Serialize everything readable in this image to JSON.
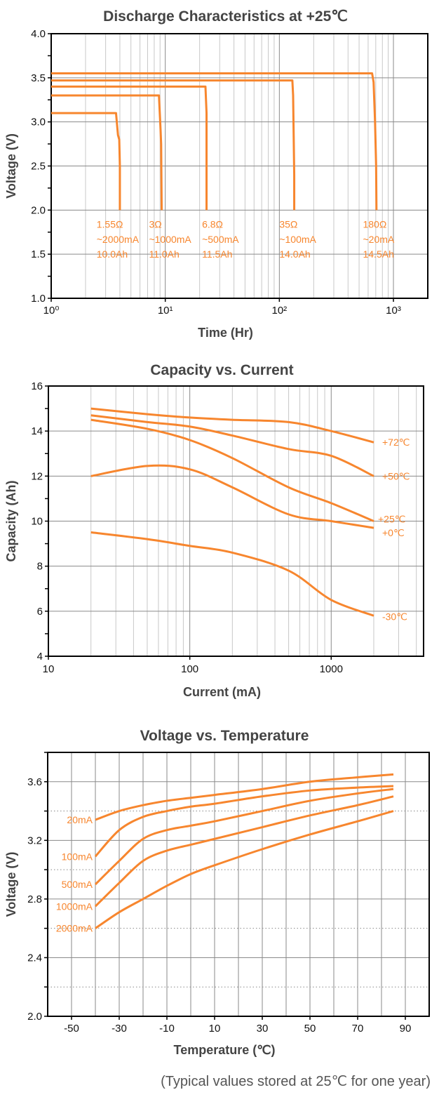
{
  "accent_color": "#f7862e",
  "footnote": "(Typical values stored at 25℃ for one year)",
  "chart_data": [
    {
      "type": "line",
      "title": "Discharge Characteristics at +25℃",
      "xlabel": "Time (Hr)",
      "ylabel": "Voltage (V)",
      "xscale": "log",
      "xlim": [
        1,
        2000
      ],
      "ylim": [
        1.0,
        4.0
      ],
      "grid": true,
      "x_ticks": [
        1,
        10,
        100,
        1000
      ],
      "x_tick_labels": [
        "10⁰",
        "10¹",
        "10²",
        "10³"
      ],
      "y_ticks": [
        1.0,
        1.5,
        2.0,
        2.5,
        3.0,
        3.5,
        4.0
      ],
      "y_tick_labels": [
        "1.0",
        "1.5",
        "2.0",
        "2.5",
        "3.0",
        "3.5",
        "4.0"
      ],
      "series": [
        {
          "name": "1.55Ω",
          "points": [
            [
              1,
              3.1
            ],
            [
              3.7,
              3.1
            ],
            [
              3.85,
              2.85
            ],
            [
              3.95,
              2.8
            ],
            [
              4.0,
              2.5
            ],
            [
              4.0,
              2.0
            ]
          ],
          "label": [
            "1.55Ω",
            "~2000mA",
            "10.0Ah"
          ],
          "label_x": 2.5
        },
        {
          "name": "3Ω",
          "points": [
            [
              1,
              3.3
            ],
            [
              8.8,
              3.3
            ],
            [
              9.1,
              2.9
            ],
            [
              9.2,
              2.75
            ],
            [
              9.3,
              2.0
            ]
          ],
          "label": [
            "3Ω",
            "~1000mA",
            "11.0Ah"
          ],
          "label_x": 7.2
        },
        {
          "name": "6.8Ω",
          "points": [
            [
              1,
              3.4
            ],
            [
              22.5,
              3.4
            ],
            [
              23,
              3.1
            ],
            [
              23,
              2.0
            ]
          ],
          "label": [
            "6.8Ω",
            "~500mA",
            "11.5Ah"
          ],
          "label_x": 21
        },
        {
          "name": "35Ω",
          "points": [
            [
              1,
              3.47
            ],
            [
              130,
              3.47
            ],
            [
              132,
              3.3
            ],
            [
              135,
              2.4
            ],
            [
              135,
              2.0
            ]
          ],
          "label": [
            "35Ω",
            "~100mA",
            "14.0Ah"
          ],
          "label_x": 100
        },
        {
          "name": "180Ω",
          "points": [
            [
              1,
              3.55
            ],
            [
              650,
              3.55
            ],
            [
              670,
              3.45
            ],
            [
              690,
              3.0
            ],
            [
              705,
              2.5
            ],
            [
              710,
              2.0
            ]
          ],
          "label": [
            "180Ω",
            "~20mA",
            "14.5Ah"
          ],
          "label_x": 540
        }
      ]
    },
    {
      "type": "line",
      "title": "Capacity vs. Current",
      "xlabel": "Current (mA)",
      "ylabel": "Capacity (Ah)",
      "xscale": "log",
      "xlim": [
        10,
        4500
      ],
      "ylim": [
        4,
        16
      ],
      "grid": true,
      "x_ticks": [
        10,
        100,
        1000
      ],
      "x_tick_labels": [
        "10",
        "100",
        "1000"
      ],
      "y_ticks": [
        4,
        6,
        8,
        10,
        12,
        14,
        16
      ],
      "y_tick_labels": [
        "4",
        "6",
        "8",
        "10",
        "12",
        "14",
        "16"
      ],
      "series": [
        {
          "name": "+72℃",
          "points": [
            [
              20,
              15.0
            ],
            [
              50,
              14.75
            ],
            [
              100,
              14.6
            ],
            [
              200,
              14.5
            ],
            [
              500,
              14.4
            ],
            [
              1000,
              14.0
            ],
            [
              2000,
              13.5
            ]
          ]
        },
        {
          "name": "+50℃",
          "points": [
            [
              20,
              14.7
            ],
            [
              50,
              14.4
            ],
            [
              100,
              14.2
            ],
            [
              200,
              13.8
            ],
            [
              500,
              13.2
            ],
            [
              1000,
              12.9
            ],
            [
              2000,
              12.0
            ]
          ]
        },
        {
          "name": "+25℃",
          "points": [
            [
              20,
              14.5
            ],
            [
              50,
              14.1
            ],
            [
              100,
              13.6
            ],
            [
              200,
              12.8
            ],
            [
              500,
              11.5
            ],
            [
              1000,
              10.8
            ],
            [
              2000,
              10.0
            ]
          ]
        },
        {
          "name": "+0℃",
          "points": [
            [
              20,
              12.0
            ],
            [
              50,
              12.45
            ],
            [
              100,
              12.3
            ],
            [
              200,
              11.5
            ],
            [
              500,
              10.3
            ],
            [
              1000,
              10.0
            ],
            [
              2000,
              9.7
            ]
          ]
        },
        {
          "name": "-30℃",
          "points": [
            [
              20,
              9.5
            ],
            [
              50,
              9.2
            ],
            [
              100,
              8.9
            ],
            [
              200,
              8.6
            ],
            [
              500,
              7.8
            ],
            [
              1000,
              6.5
            ],
            [
              2000,
              5.8
            ]
          ]
        }
      ]
    },
    {
      "type": "line",
      "title": "Voltage vs. Temperature",
      "xlabel": "Temperature (℃)",
      "ylabel": "Voltage (V)",
      "xscale": "linear",
      "xlim": [
        -60,
        100
      ],
      "ylim": [
        2.0,
        3.8
      ],
      "grid": true,
      "x_ticks": [
        -50,
        -30,
        -10,
        10,
        30,
        50,
        70,
        90
      ],
      "x_tick_labels": [
        "-50",
        "-30",
        "-10",
        "10",
        "30",
        "50",
        "70",
        "90"
      ],
      "y_ticks": [
        2.0,
        2.4,
        2.8,
        3.2,
        3.6
      ],
      "y_tick_labels": [
        "2.0",
        "2.4",
        "2.8",
        "3.2",
        "3.6"
      ],
      "series": [
        {
          "name": "20mA",
          "points": [
            [
              -40,
              3.34
            ],
            [
              -30,
              3.4
            ],
            [
              -20,
              3.44
            ],
            [
              -10,
              3.47
            ],
            [
              0,
              3.49
            ],
            [
              10,
              3.51
            ],
            [
              30,
              3.55
            ],
            [
              50,
              3.6
            ],
            [
              70,
              3.63
            ],
            [
              85,
              3.65
            ]
          ]
        },
        {
          "name": "100mA",
          "points": [
            [
              -40,
              3.09
            ],
            [
              -30,
              3.27
            ],
            [
              -20,
              3.36
            ],
            [
              -10,
              3.4
            ],
            [
              0,
              3.43
            ],
            [
              10,
              3.45
            ],
            [
              30,
              3.5
            ],
            [
              50,
              3.54
            ],
            [
              70,
              3.56
            ],
            [
              85,
              3.57
            ]
          ]
        },
        {
          "name": "500mA",
          "points": [
            [
              -40,
              2.9
            ],
            [
              -30,
              3.06
            ],
            [
              -20,
              3.21
            ],
            [
              -10,
              3.27
            ],
            [
              0,
              3.3
            ],
            [
              10,
              3.33
            ],
            [
              30,
              3.4
            ],
            [
              50,
              3.47
            ],
            [
              70,
              3.52
            ],
            [
              85,
              3.55
            ]
          ]
        },
        {
          "name": "1000mA",
          "points": [
            [
              -40,
              2.75
            ],
            [
              -30,
              2.91
            ],
            [
              -20,
              3.06
            ],
            [
              -10,
              3.13
            ],
            [
              0,
              3.17
            ],
            [
              10,
              3.21
            ],
            [
              30,
              3.29
            ],
            [
              50,
              3.37
            ],
            [
              70,
              3.44
            ],
            [
              85,
              3.5
            ]
          ]
        },
        {
          "name": "2000mA",
          "points": [
            [
              -40,
              2.6
            ],
            [
              -30,
              2.71
            ],
            [
              -20,
              2.8
            ],
            [
              -10,
              2.89
            ],
            [
              0,
              2.97
            ],
            [
              10,
              3.03
            ],
            [
              30,
              3.14
            ],
            [
              50,
              3.24
            ],
            [
              70,
              3.33
            ],
            [
              85,
              3.4
            ]
          ]
        }
      ]
    }
  ]
}
